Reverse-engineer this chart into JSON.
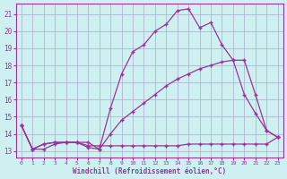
{
  "background_color": "#cff0f0",
  "grid_color": "#aaaacc",
  "line_color": "#993399",
  "x_label": "Windchill (Refroidissement éolien,°C)",
  "xlim": [
    -0.5,
    23.5
  ],
  "ylim": [
    12.6,
    21.6
  ],
  "yticks": [
    13,
    14,
    15,
    16,
    17,
    18,
    19,
    20,
    21
  ],
  "xticks": [
    0,
    1,
    2,
    3,
    4,
    5,
    6,
    7,
    8,
    9,
    10,
    11,
    12,
    13,
    14,
    15,
    16,
    17,
    18,
    19,
    20,
    21,
    22,
    23
  ],
  "line_top": {
    "x": [
      0,
      1,
      2,
      3,
      4,
      5,
      6,
      7,
      8,
      9,
      10,
      11,
      12,
      13,
      14,
      15,
      16,
      17,
      18,
      19,
      20,
      21,
      22,
      23
    ],
    "y": [
      14.5,
      13.1,
      13.1,
      13.4,
      13.5,
      13.5,
      13.2,
      13.1,
      15.5,
      17.5,
      18.8,
      19.2,
      20.0,
      20.4,
      21.2,
      21.3,
      20.2,
      20.5,
      19.2,
      18.3,
      18.3,
      16.3,
      14.2,
      13.8
    ]
  },
  "line_mid": {
    "x": [
      0,
      1,
      2,
      3,
      4,
      5,
      6,
      7,
      8,
      9,
      10,
      11,
      12,
      13,
      14,
      15,
      16,
      17,
      18,
      19,
      20,
      21,
      22,
      23
    ],
    "y": [
      14.5,
      13.1,
      13.4,
      13.5,
      13.5,
      13.5,
      13.5,
      13.1,
      14.0,
      14.8,
      15.3,
      15.8,
      16.3,
      16.8,
      17.2,
      17.5,
      17.8,
      18.0,
      18.2,
      18.3,
      16.3,
      15.2,
      14.2,
      13.8
    ]
  },
  "line_bot": {
    "x": [
      0,
      1,
      2,
      3,
      4,
      5,
      6,
      7,
      8,
      9,
      10,
      11,
      12,
      13,
      14,
      15,
      16,
      17,
      18,
      19,
      20,
      21,
      22,
      23
    ],
    "y": [
      14.5,
      13.1,
      13.4,
      13.5,
      13.5,
      13.5,
      13.3,
      13.3,
      13.3,
      13.3,
      13.3,
      13.3,
      13.3,
      13.3,
      13.3,
      13.4,
      13.4,
      13.4,
      13.4,
      13.4,
      13.4,
      13.4,
      13.4,
      13.8
    ]
  }
}
